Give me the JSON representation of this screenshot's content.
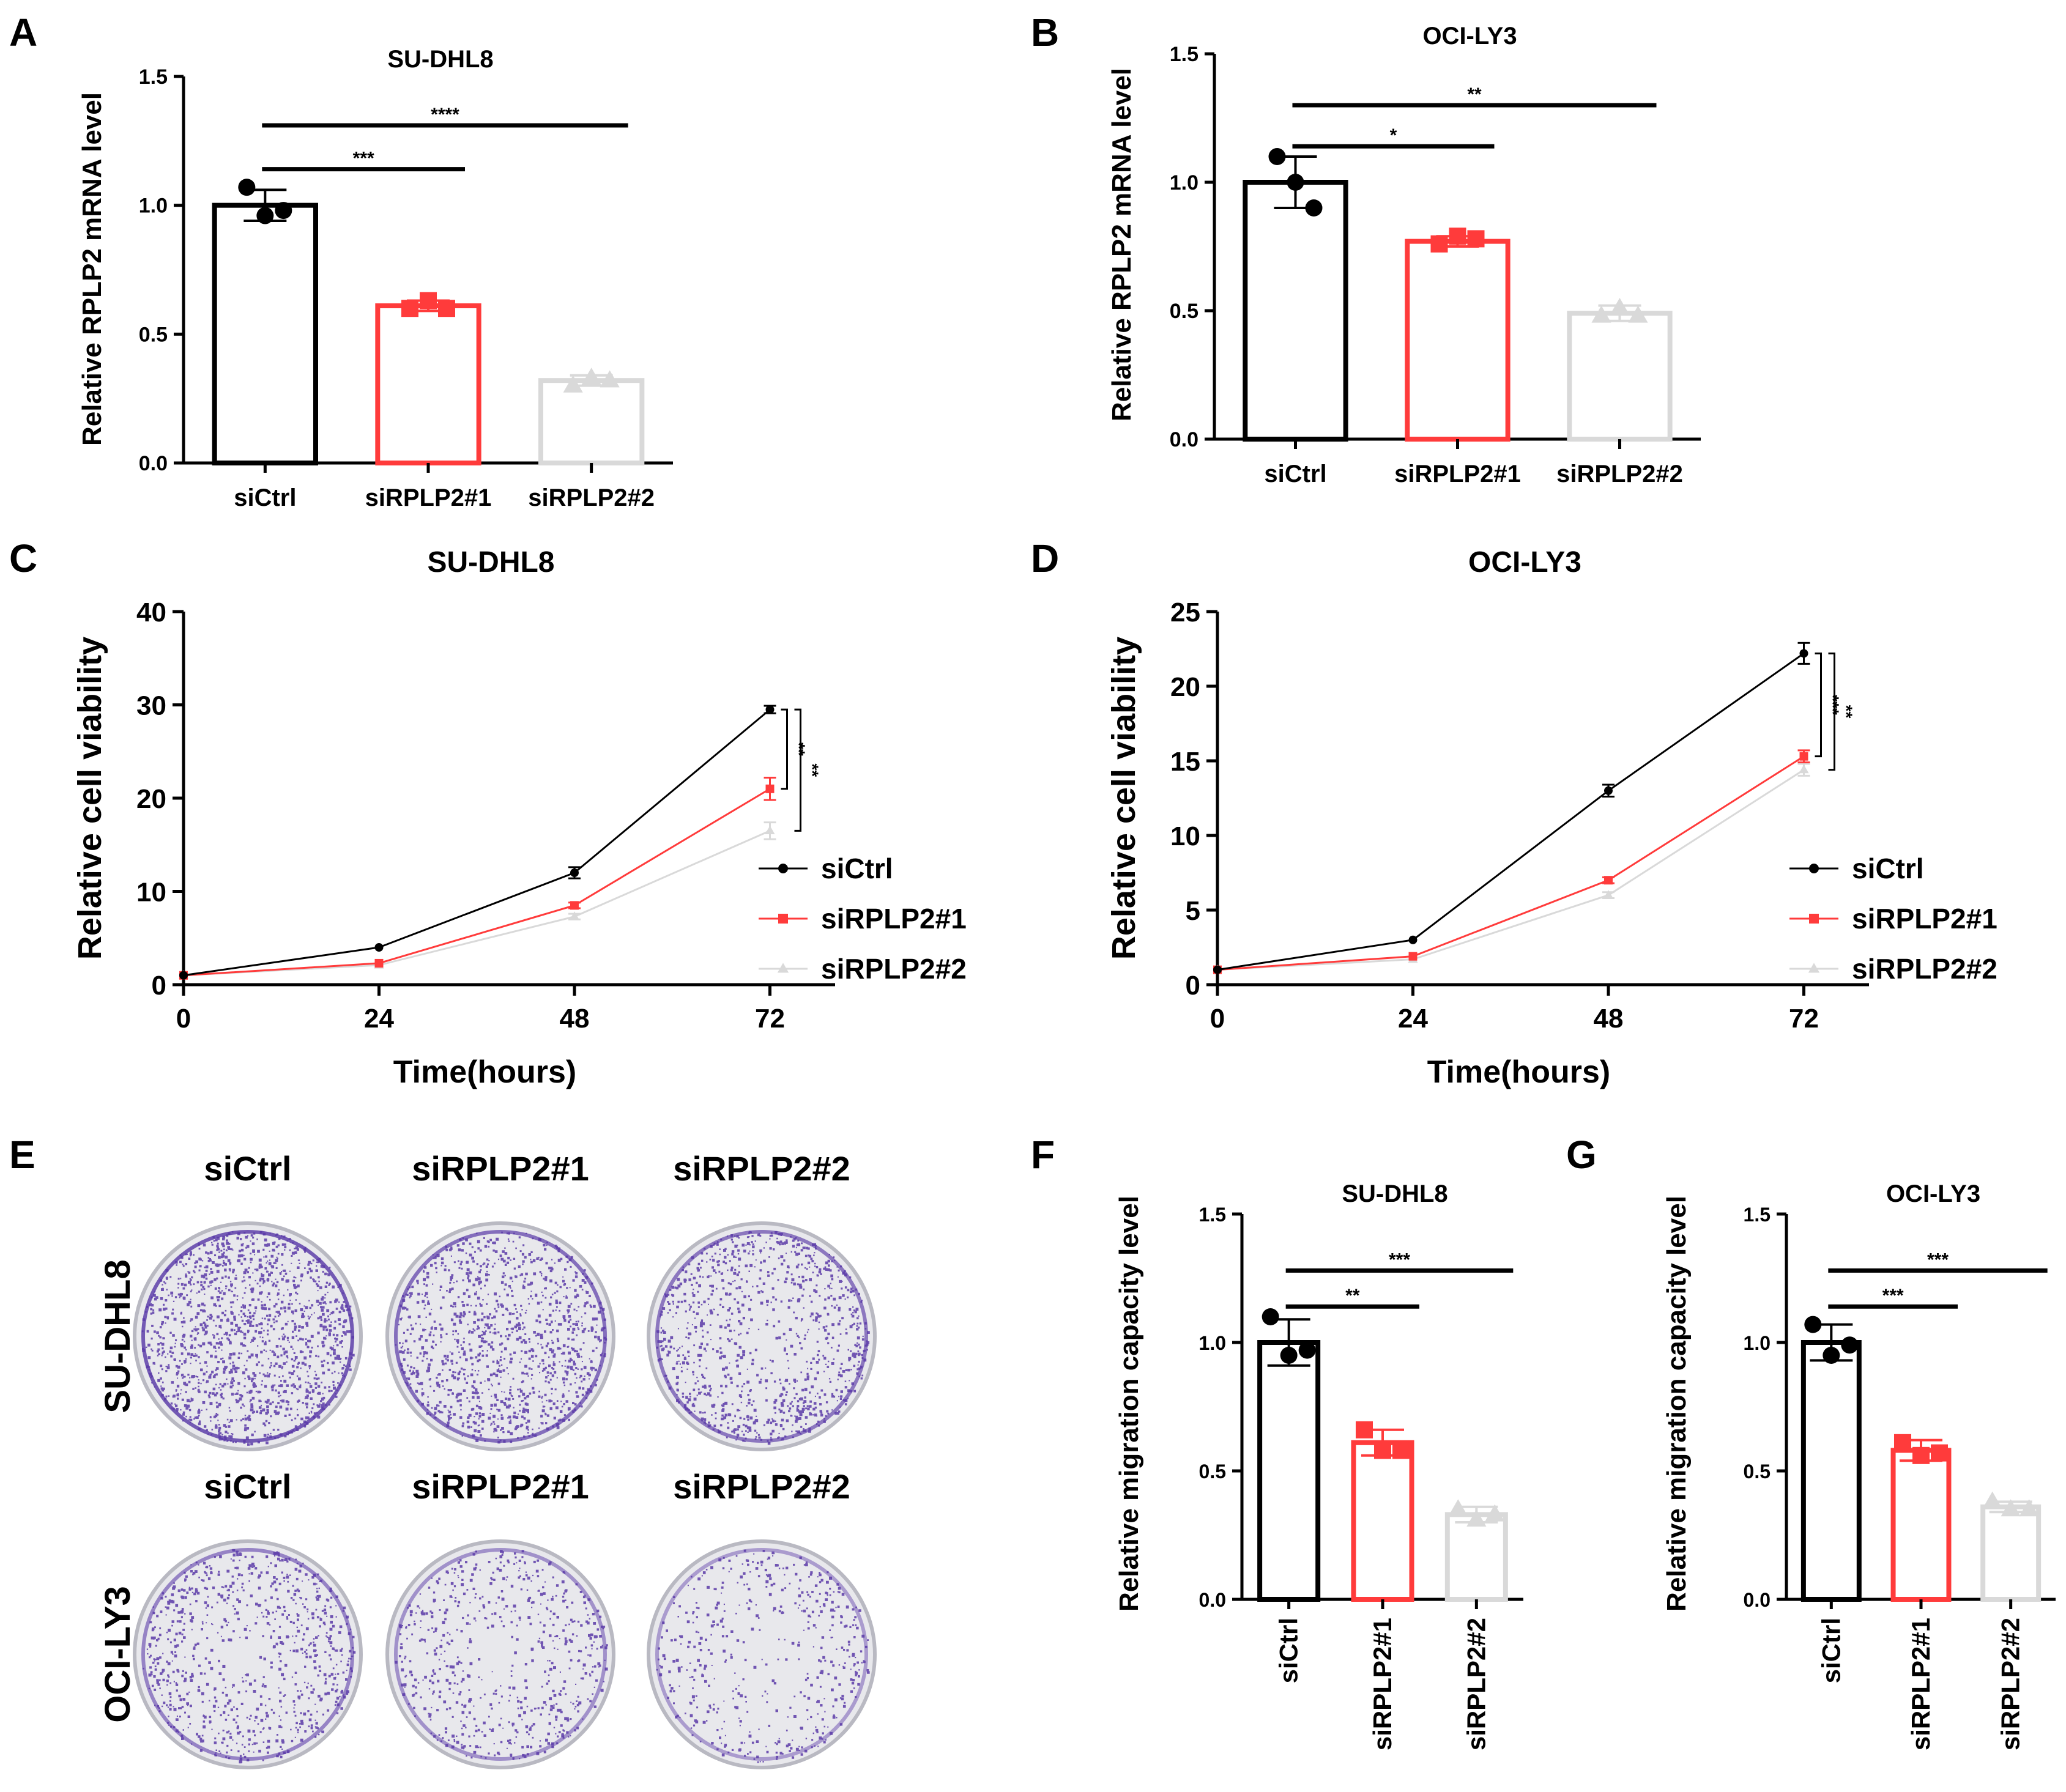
{
  "chart_data": [
    {
      "id": "A",
      "panel_letter": "A",
      "type": "bar",
      "title": "SU-DHL8",
      "ylabel": "Relative RPLP2 mRNA level",
      "xlabel": "",
      "categories": [
        "siCtrl",
        "siRPLP2#1",
        "siRPLP2#2"
      ],
      "values": [
        1.0,
        0.61,
        0.32
      ],
      "errors": [
        0.06,
        0.02,
        0.02
      ],
      "points": [
        [
          1.07,
          0.96,
          0.98
        ],
        [
          0.6,
          0.63,
          0.6
        ],
        [
          0.3,
          0.33,
          0.32
        ]
      ],
      "colors": [
        "#000000",
        "#ff3b3b",
        "#d9d9d9"
      ],
      "ylim": [
        0,
        1.5
      ],
      "yticks": [
        0,
        0.5,
        1.0,
        1.5
      ],
      "yticklabels": [
        "0.0",
        "0.5",
        "1.0",
        "1.5"
      ],
      "significance": [
        {
          "from": 0,
          "to": 1,
          "y": 1.14,
          "label": "***"
        },
        {
          "from": 0,
          "to": 2,
          "y": 1.31,
          "label": "****"
        }
      ]
    },
    {
      "id": "B",
      "panel_letter": "B",
      "type": "bar",
      "title": "OCI-LY3",
      "ylabel": "Relative RPLP2 mRNA level",
      "xlabel": "",
      "categories": [
        "siCtrl",
        "siRPLP2#1",
        "siRPLP2#2"
      ],
      "values": [
        1.0,
        0.77,
        0.49
      ],
      "errors": [
        0.1,
        0.02,
        0.03
      ],
      "points": [
        [
          1.1,
          1.0,
          0.9
        ],
        [
          0.76,
          0.79,
          0.78
        ],
        [
          0.48,
          0.51,
          0.48
        ]
      ],
      "colors": [
        "#000000",
        "#ff3b3b",
        "#d9d9d9"
      ],
      "ylim": [
        0,
        1.5
      ],
      "yticks": [
        0,
        0.5,
        1.0,
        1.5
      ],
      "yticklabels": [
        "0.0",
        "0.5",
        "1.0",
        "1.5"
      ],
      "significance": [
        {
          "from": 0,
          "to": 1,
          "y": 1.14,
          "label": "*"
        },
        {
          "from": 0,
          "to": 2,
          "y": 1.3,
          "label": "**"
        }
      ]
    },
    {
      "id": "C",
      "panel_letter": "C",
      "type": "line",
      "title": "SU-DHL8",
      "ylabel": "Relative cell viability",
      "xlabel": "Time(hours)",
      "x": [
        0,
        24,
        48,
        72
      ],
      "xticklabels": [
        "0",
        "24",
        "48",
        "72"
      ],
      "ylim": [
        0,
        40
      ],
      "yticks": [
        0,
        10,
        20,
        30,
        40
      ],
      "yticklabels": [
        "0",
        "10",
        "20",
        "30",
        "40"
      ],
      "xlim": [
        0,
        80
      ],
      "series": [
        {
          "name": "siCtrl",
          "color": "#000000",
          "marker": "circle",
          "values": [
            1,
            4,
            12,
            29.5
          ],
          "errors": [
            0,
            0,
            0.6,
            0.4
          ]
        },
        {
          "name": "siRPLP2#1",
          "color": "#ff3b3b",
          "marker": "square",
          "values": [
            1,
            2.3,
            8.5,
            21
          ],
          "errors": [
            0,
            0,
            0.3,
            1.2
          ]
        },
        {
          "name": "siRPLP2#2",
          "color": "#d9d9d9",
          "marker": "triangle",
          "values": [
            1,
            2.1,
            7.3,
            16.5
          ],
          "errors": [
            0,
            0,
            0.3,
            0.9
          ]
        }
      ],
      "significance": [
        {
          "label": "**"
        },
        {
          "label": "**"
        }
      ],
      "legend_position": "bottom-right"
    },
    {
      "id": "D",
      "panel_letter": "D",
      "type": "line",
      "title": "OCI-LY3",
      "ylabel": "Relative cell viability",
      "xlabel": "Time(hours)",
      "x": [
        0,
        24,
        48,
        72
      ],
      "xticklabels": [
        "0",
        "24",
        "48",
        "72"
      ],
      "ylim": [
        0,
        25
      ],
      "yticks": [
        0,
        5,
        10,
        15,
        20,
        25
      ],
      "yticklabels": [
        "0",
        "5",
        "10",
        "15",
        "20",
        "25"
      ],
      "xlim": [
        0,
        80
      ],
      "series": [
        {
          "name": "siCtrl",
          "color": "#000000",
          "marker": "circle",
          "values": [
            1,
            3,
            13,
            22.2
          ],
          "errors": [
            0,
            0,
            0.4,
            0.7
          ]
        },
        {
          "name": "siRPLP2#1",
          "color": "#ff3b3b",
          "marker": "square",
          "values": [
            1,
            1.9,
            7,
            15.3
          ],
          "errors": [
            0,
            0,
            0.2,
            0.4
          ]
        },
        {
          "name": "siRPLP2#2",
          "color": "#d9d9d9",
          "marker": "triangle",
          "values": [
            1,
            1.7,
            6,
            14.4
          ],
          "errors": [
            0,
            0,
            0.2,
            0.4
          ]
        }
      ],
      "significance": [
        {
          "label": "***"
        },
        {
          "label": "**"
        }
      ],
      "legend_position": "bottom-right"
    },
    {
      "id": "F",
      "panel_letter": "F",
      "type": "bar",
      "title": "SU-DHL8",
      "ylabel": "Relative migration capacity level",
      "xlabel": "",
      "categories": [
        "siCtrl",
        "siRPLP2#1",
        "siRPLP2#2"
      ],
      "rotated_labels": true,
      "values": [
        1.0,
        0.61,
        0.33
      ],
      "errors": [
        0.09,
        0.05,
        0.03
      ],
      "points": [
        [
          1.1,
          0.95,
          0.97
        ],
        [
          0.66,
          0.58,
          0.58
        ],
        [
          0.35,
          0.31,
          0.33
        ]
      ],
      "colors": [
        "#000000",
        "#ff3b3b",
        "#d9d9d9"
      ],
      "ylim": [
        0,
        1.5
      ],
      "yticks": [
        0,
        0.5,
        1.0,
        1.5
      ],
      "yticklabels": [
        "0.0",
        "0.5",
        "1.0",
        "1.5"
      ],
      "significance": [
        {
          "from": 0,
          "to": 1,
          "y": 1.14,
          "label": "**"
        },
        {
          "from": 0,
          "to": 2,
          "y": 1.28,
          "label": "***"
        }
      ]
    },
    {
      "id": "G",
      "panel_letter": "G",
      "type": "bar",
      "title": "OCI-LY3",
      "ylabel": "Relative migration capacity level",
      "xlabel": "",
      "categories": [
        "siCtrl",
        "siRPLP2#1",
        "siRPLP2#2"
      ],
      "rotated_labels": true,
      "values": [
        1.0,
        0.58,
        0.36
      ],
      "errors": [
        0.07,
        0.04,
        0.02
      ],
      "points": [
        [
          1.07,
          0.95,
          0.99
        ],
        [
          0.61,
          0.56,
          0.57
        ],
        [
          0.38,
          0.35,
          0.35
        ]
      ],
      "colors": [
        "#000000",
        "#ff3b3b",
        "#d9d9d9"
      ],
      "ylim": [
        0,
        1.5
      ],
      "yticks": [
        0,
        0.5,
        1.0,
        1.5
      ],
      "yticklabels": [
        "0.0",
        "0.5",
        "1.0",
        "1.5"
      ],
      "significance": [
        {
          "from": 0,
          "to": 1,
          "y": 1.14,
          "label": "***"
        },
        {
          "from": 0,
          "to": 2,
          "y": 1.28,
          "label": "***"
        }
      ]
    }
  ],
  "panel_e": {
    "panel_letter": "E",
    "column_labels": [
      "siCtrl",
      "siRPLP2#1",
      "siRPLP2#2"
    ],
    "row_labels": [
      "SU-DHL8",
      "OCI-LY3"
    ],
    "stain_color": "#5a3aa8",
    "plate_color": "#e8e8ec",
    "wells": [
      {
        "row": 0,
        "col": 0,
        "density": 0.95
      },
      {
        "row": 0,
        "col": 1,
        "density": 0.7
      },
      {
        "row": 0,
        "col": 2,
        "density": 0.6
      },
      {
        "row": 1,
        "col": 0,
        "density": 0.45
      },
      {
        "row": 1,
        "col": 1,
        "density": 0.3
      },
      {
        "row": 1,
        "col": 2,
        "density": 0.18
      }
    ]
  }
}
